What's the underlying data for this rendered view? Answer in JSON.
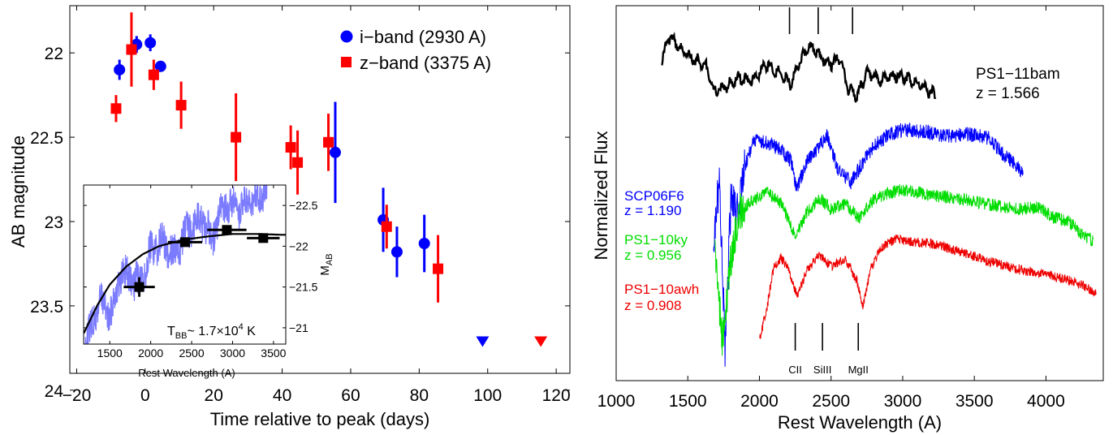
{
  "chart_data": [
    {
      "type": "scatter",
      "xlabel": "Time relative to peak  (days)",
      "ylabel": "AB magnitude",
      "xlim": [
        -22,
        124
      ],
      "ylim": [
        23.9,
        21.72
      ],
      "y_inverted": true,
      "xticks": [
        -20,
        0,
        20,
        40,
        60,
        80,
        100,
        120
      ],
      "yticks": [
        22,
        22.5,
        23,
        23.5,
        24
      ],
      "ytick_labels": [
        "22",
        "22.5",
        "23",
        "23.5",
        "24"
      ],
      "legend_position": "top-right",
      "series": [
        {
          "name": "i−band (2930 A)",
          "color": "#0000ff",
          "marker": "circle",
          "points": [
            {
              "x": -7.5,
              "y": 22.1,
              "err": 0.06
            },
            {
              "x": -2.5,
              "y": 21.95,
              "err": 0.05
            },
            {
              "x": 1.5,
              "y": 21.94,
              "err": 0.05
            },
            {
              "x": 4.5,
              "y": 22.08,
              "err": 0.03
            },
            {
              "x": 55.5,
              "y": 22.59,
              "err": 0.3
            },
            {
              "x": 69.5,
              "y": 22.99,
              "err": 0.19
            },
            {
              "x": 73.5,
              "y": 23.18,
              "err": 0.15
            },
            {
              "x": 81.5,
              "y": 23.13,
              "err": 0.17
            }
          ],
          "upper_limits": [
            {
              "x": 98.5,
              "y": 23.71
            }
          ]
        },
        {
          "name": "z−band (3375 A)",
          "color": "#ff0000",
          "marker": "square",
          "points": [
            {
              "x": -8.5,
              "y": 22.33,
              "err": 0.08
            },
            {
              "x": -4,
              "y": 21.98,
              "err": 0.22
            },
            {
              "x": 2.5,
              "y": 22.13,
              "err": 0.09
            },
            {
              "x": 10.5,
              "y": 22.31,
              "err": 0.14
            },
            {
              "x": 26.5,
              "y": 22.5,
              "err": 0.26
            },
            {
              "x": 42.5,
              "y": 22.56,
              "err": 0.13
            },
            {
              "x": 44.5,
              "y": 22.65,
              "err": 0.19
            },
            {
              "x": 53.5,
              "y": 22.53,
              "err": 0.17
            },
            {
              "x": 70.5,
              "y": 23.03,
              "err": 0.13
            },
            {
              "x": 85.5,
              "y": 23.28,
              "err": 0.2
            }
          ],
          "upper_limits": [
            {
              "x": 115.5,
              "y": 23.71
            }
          ]
        }
      ]
    },
    {
      "type": "line",
      "inset": true,
      "xlabel": "Rest Wavelength  (A)",
      "ylabel": "M",
      "ylabel_sub": "AB",
      "xlim": [
        1180,
        3650
      ],
      "ylim": [
        -20.8,
        -22.75
      ],
      "xticks": [
        1500,
        2000,
        2500,
        3000,
        3500
      ],
      "yticks": [
        -22.5,
        -22,
        -21.5,
        -21
      ],
      "ytick_labels": [
        "−22.5",
        "−22",
        "−21.5",
        "−21"
      ],
      "annotation": {
        "pre": "T",
        "sub": "BB",
        "mid": "~ 1.7×10",
        "sup": "4",
        "post": " K"
      },
      "spectrum_color": "#7b7bff",
      "spectrum_anchors": [
        [
          1200,
          -20.85
        ],
        [
          1280,
          -21.0
        ],
        [
          1380,
          -21.35
        ],
        [
          1500,
          -21.15
        ],
        [
          1650,
          -21.7
        ],
        [
          1800,
          -21.55
        ],
        [
          1900,
          -21.6
        ],
        [
          2000,
          -21.95
        ],
        [
          2150,
          -22.05
        ],
        [
          2300,
          -21.9
        ],
        [
          2450,
          -22.2
        ],
        [
          2600,
          -22.35
        ],
        [
          2750,
          -22.1
        ],
        [
          2900,
          -22.5
        ],
        [
          3100,
          -22.45
        ],
        [
          3300,
          -22.6
        ],
        [
          3420,
          -22.7
        ]
      ],
      "blackbody_anchors": [
        [
          1180,
          -20.93
        ],
        [
          1350,
          -21.28
        ],
        [
          1500,
          -21.53
        ],
        [
          1700,
          -21.75
        ],
        [
          1900,
          -21.9
        ],
        [
          2100,
          -22.0
        ],
        [
          2400,
          -22.08
        ],
        [
          2700,
          -22.12
        ],
        [
          3000,
          -22.15
        ],
        [
          3300,
          -22.15
        ],
        [
          3600,
          -22.14
        ]
      ],
      "photometry": [
        {
          "x": 1860,
          "y": -21.5,
          "xerr": 190,
          "yerr": 0.12
        },
        {
          "x": 2420,
          "y": -22.05,
          "xerr": 210,
          "yerr": 0.05
        },
        {
          "x": 2930,
          "y": -22.2,
          "xerr": 240,
          "yerr": 0.05
        },
        {
          "x": 3375,
          "y": -22.1,
          "xerr": 200,
          "yerr": 0.05
        }
      ]
    },
    {
      "type": "line",
      "xlabel": "Rest Wavelength  (A)",
      "ylabel": "Normalized Flux",
      "xlim": [
        1000,
        4400
      ],
      "xticks": [
        1000,
        1500,
        2000,
        2500,
        3000,
        3500,
        4000
      ],
      "line_marks_top": [
        2210,
        2410,
        2650
      ],
      "line_marks_bottom": [
        {
          "x": 2250,
          "label": "CII"
        },
        {
          "x": 2440,
          "label": "SiIII"
        },
        {
          "x": 2690,
          "label": "MgII"
        }
      ],
      "series": [
        {
          "name": "PS1−11bam",
          "z": "z = 1.566",
          "color": "#000000",
          "x_range": [
            1320,
            3230
          ],
          "anchors": [
            [
              1320,
              72
            ],
            [
              1370,
              45
            ],
            [
              1450,
              62
            ],
            [
              1550,
              75
            ],
            [
              1620,
              78
            ],
            [
              1680,
              112
            ],
            [
              1750,
              108
            ],
            [
              1850,
              96
            ],
            [
              1950,
              100
            ],
            [
              2050,
              78
            ],
            [
              2150,
              92
            ],
            [
              2220,
              103
            ],
            [
              2300,
              70
            ],
            [
              2360,
              56
            ],
            [
              2420,
              68
            ],
            [
              2480,
              80
            ],
            [
              2560,
              72
            ],
            [
              2620,
              110
            ],
            [
              2680,
              118
            ],
            [
              2750,
              90
            ],
            [
              2850,
              98
            ],
            [
              2950,
              92
            ],
            [
              3050,
              98
            ],
            [
              3150,
              108
            ],
            [
              3230,
              118
            ]
          ]
        },
        {
          "name": "SCP06F6",
          "z": "z = 1.190",
          "color": "#0000ff",
          "x_range": [
            1680,
            3840
          ],
          "anchors": [
            [
              1680,
              300
            ],
            [
              1720,
              220
            ],
            [
              1760,
              430
            ],
            [
              1800,
              250
            ],
            [
              1850,
              265
            ],
            [
              1900,
              205
            ],
            [
              1960,
              172
            ],
            [
              2050,
              175
            ],
            [
              2150,
              185
            ],
            [
              2220,
              198
            ],
            [
              2260,
              232
            ],
            [
              2330,
              200
            ],
            [
              2400,
              185
            ],
            [
              2470,
              165
            ],
            [
              2550,
              210
            ],
            [
              2640,
              225
            ],
            [
              2720,
              200
            ],
            [
              2800,
              180
            ],
            [
              2900,
              166
            ],
            [
              3000,
              160
            ],
            [
              3150,
              162
            ],
            [
              3300,
              168
            ],
            [
              3450,
              165
            ],
            [
              3600,
              170
            ],
            [
              3700,
              190
            ],
            [
              3800,
              205
            ],
            [
              3840,
              215
            ]
          ]
        },
        {
          "name": "PS1−10ky",
          "z": "z = 0.956",
          "color": "#00dd00",
          "x_range": [
            1690,
            4330
          ],
          "anchors": [
            [
              1690,
              300
            ],
            [
              1740,
              420
            ],
            [
              1800,
              320
            ],
            [
              1860,
              260
            ],
            [
              1950,
              248
            ],
            [
              2050,
              236
            ],
            [
              2150,
              250
            ],
            [
              2250,
              290
            ],
            [
              2330,
              262
            ],
            [
              2420,
              244
            ],
            [
              2500,
              258
            ],
            [
              2600,
              250
            ],
            [
              2700,
              270
            ],
            [
              2800,
              245
            ],
            [
              2900,
              238
            ],
            [
              3000,
              234
            ],
            [
              3200,
              240
            ],
            [
              3400,
              245
            ],
            [
              3600,
              252
            ],
            [
              3800,
              258
            ],
            [
              3950,
              255
            ],
            [
              4050,
              268
            ],
            [
              4150,
              272
            ],
            [
              4250,
              288
            ],
            [
              4330,
              298
            ]
          ]
        },
        {
          "name": "PS1−10awh",
          "z": "z = 0.908",
          "color": "#ee0000",
          "x_range": [
            2000,
            4350
          ],
          "anchors": [
            [
              2000,
              420
            ],
            [
              2050,
              380
            ],
            [
              2100,
              330
            ],
            [
              2150,
              318
            ],
            [
              2200,
              330
            ],
            [
              2260,
              365
            ],
            [
              2340,
              330
            ],
            [
              2420,
              315
            ],
            [
              2500,
              328
            ],
            [
              2600,
              320
            ],
            [
              2680,
              345
            ],
            [
              2720,
              378
            ],
            [
              2780,
              330
            ],
            [
              2850,
              305
            ],
            [
              2950,
              294
            ],
            [
              3050,
              298
            ],
            [
              3200,
              300
            ],
            [
              3400,
              310
            ],
            [
              3600,
              322
            ],
            [
              3800,
              332
            ],
            [
              4000,
              338
            ],
            [
              4150,
              345
            ],
            [
              4250,
              350
            ],
            [
              4350,
              362
            ]
          ]
        }
      ]
    }
  ]
}
